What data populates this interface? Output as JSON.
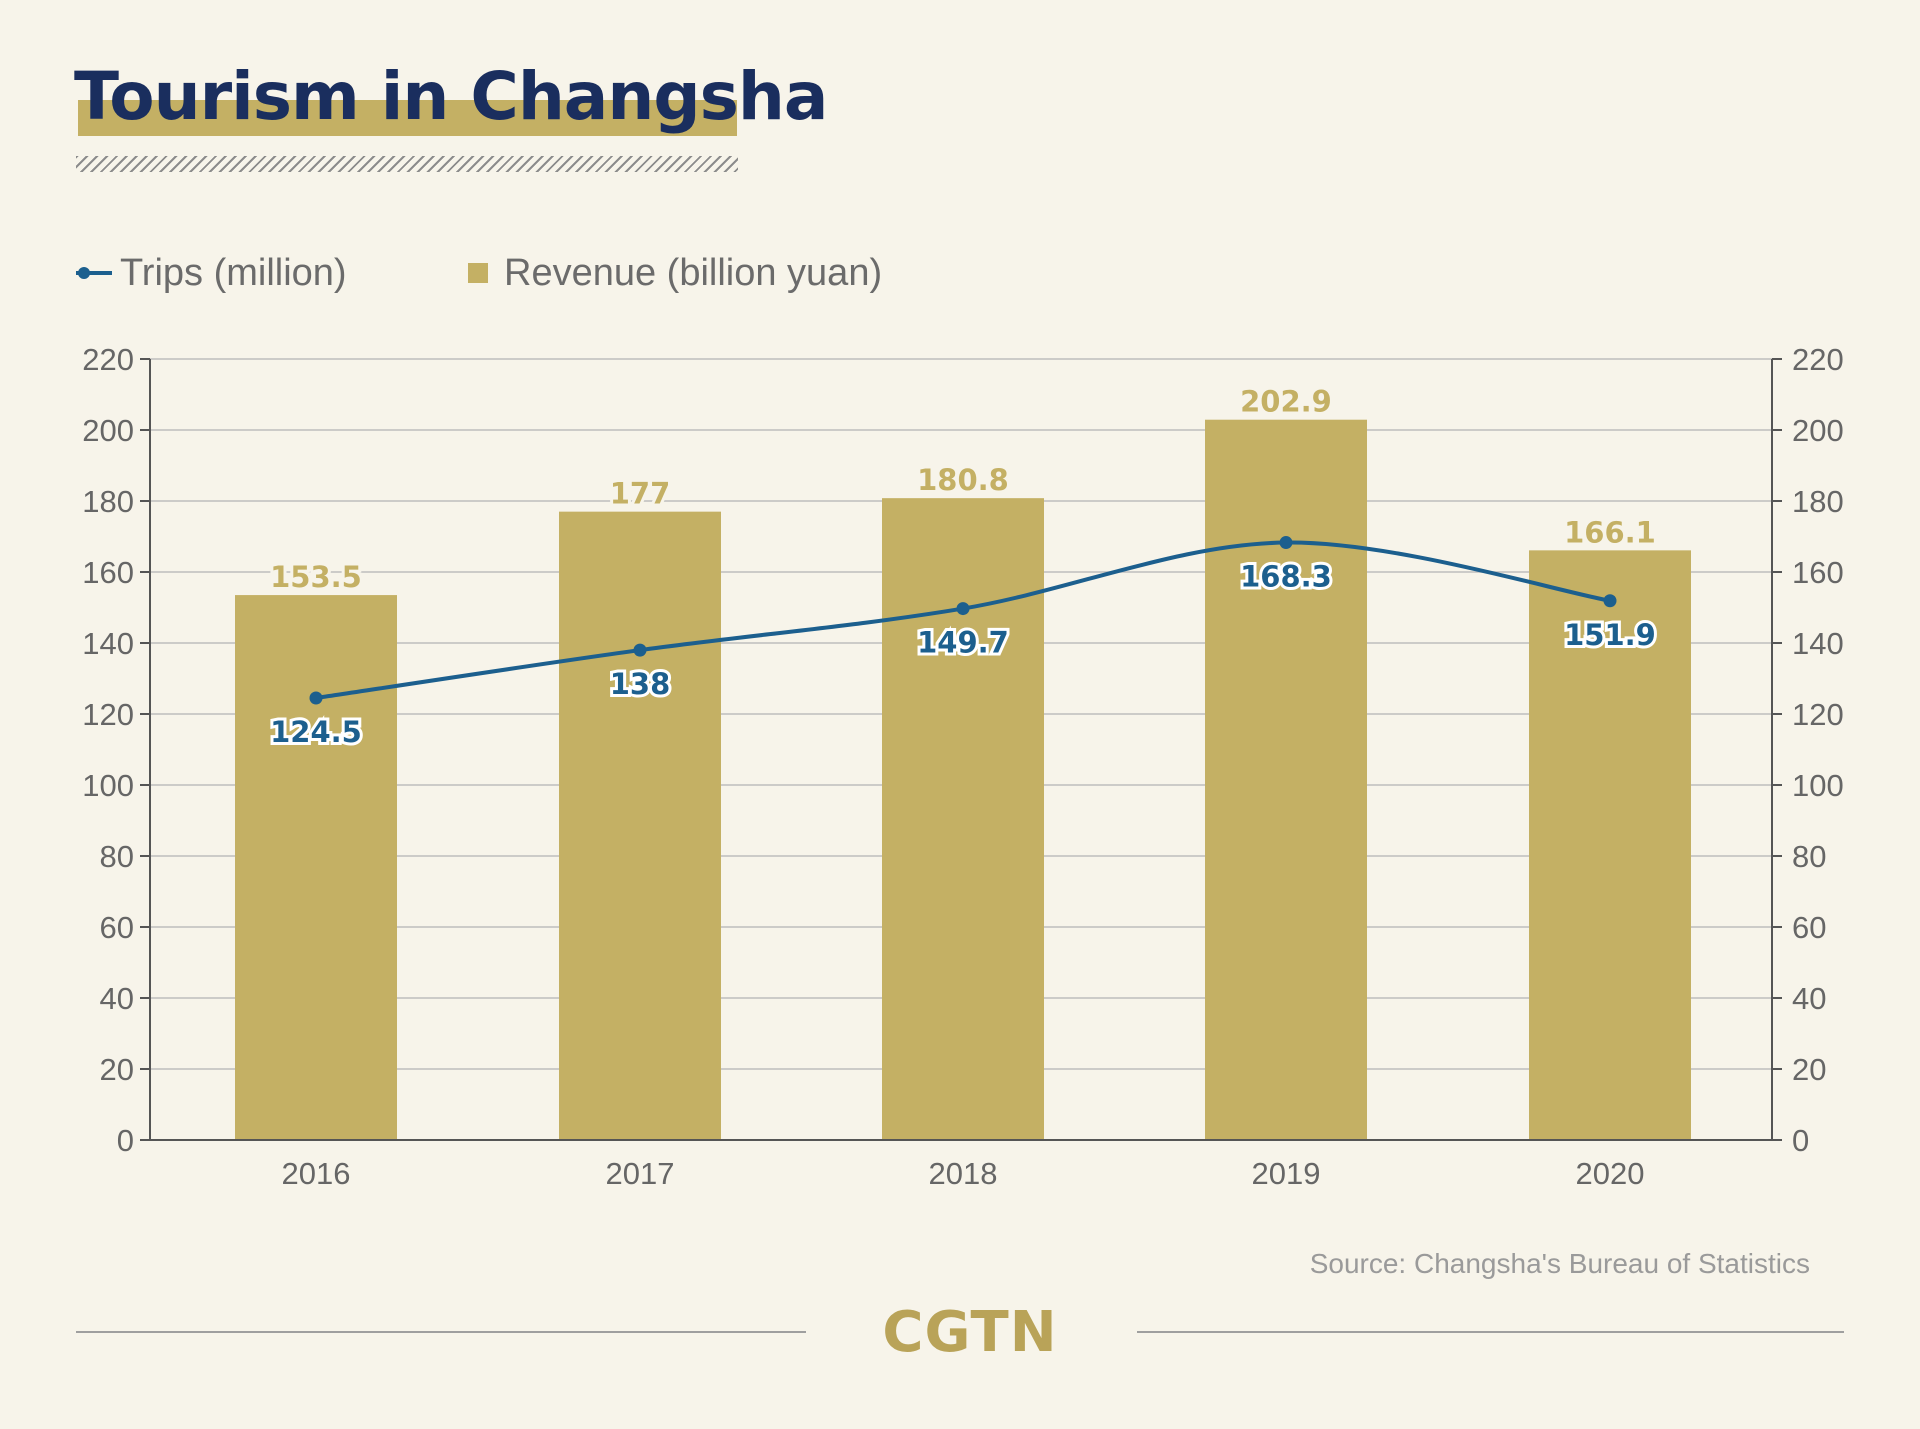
{
  "header": {
    "title": "Tourism in Changsha"
  },
  "legend": {
    "line_label": "Trips (million)",
    "bar_label": "Revenue (billion yuan)"
  },
  "colors": {
    "bar": "#c4b064",
    "line": "#1c5f8e",
    "title": "#1a2e5e",
    "grid": "#bdbdbd",
    "background": "#f7f4ea"
  },
  "chart_data": {
    "type": "bar",
    "categories": [
      "2016",
      "2017",
      "2018",
      "2019",
      "2020"
    ],
    "series": [
      {
        "name": "Revenue (billion yuan)",
        "type": "bar",
        "axis": "left",
        "values": [
          153.5,
          177,
          180.8,
          202.9,
          166.1
        ],
        "labels": [
          "153.5",
          "177",
          "180.8",
          "202.9",
          "166.1"
        ]
      },
      {
        "name": "Trips (million)",
        "type": "line",
        "axis": "right",
        "values": [
          124.5,
          138,
          149.7,
          168.3,
          151.9
        ],
        "labels": [
          "124.5",
          "138",
          "149.7",
          "168.3",
          "151.9"
        ]
      }
    ],
    "ylim": [
      0,
      220
    ],
    "y2lim": [
      0,
      220
    ],
    "yticks": [
      "0",
      "20",
      "40",
      "60",
      "80",
      "100",
      "120",
      "140",
      "160",
      "180",
      "200",
      "220"
    ],
    "grid": true,
    "legend_position": "top-left"
  },
  "footer": {
    "source": "Source: Changsha's Bureau of Statistics",
    "brand": "CGTN"
  }
}
